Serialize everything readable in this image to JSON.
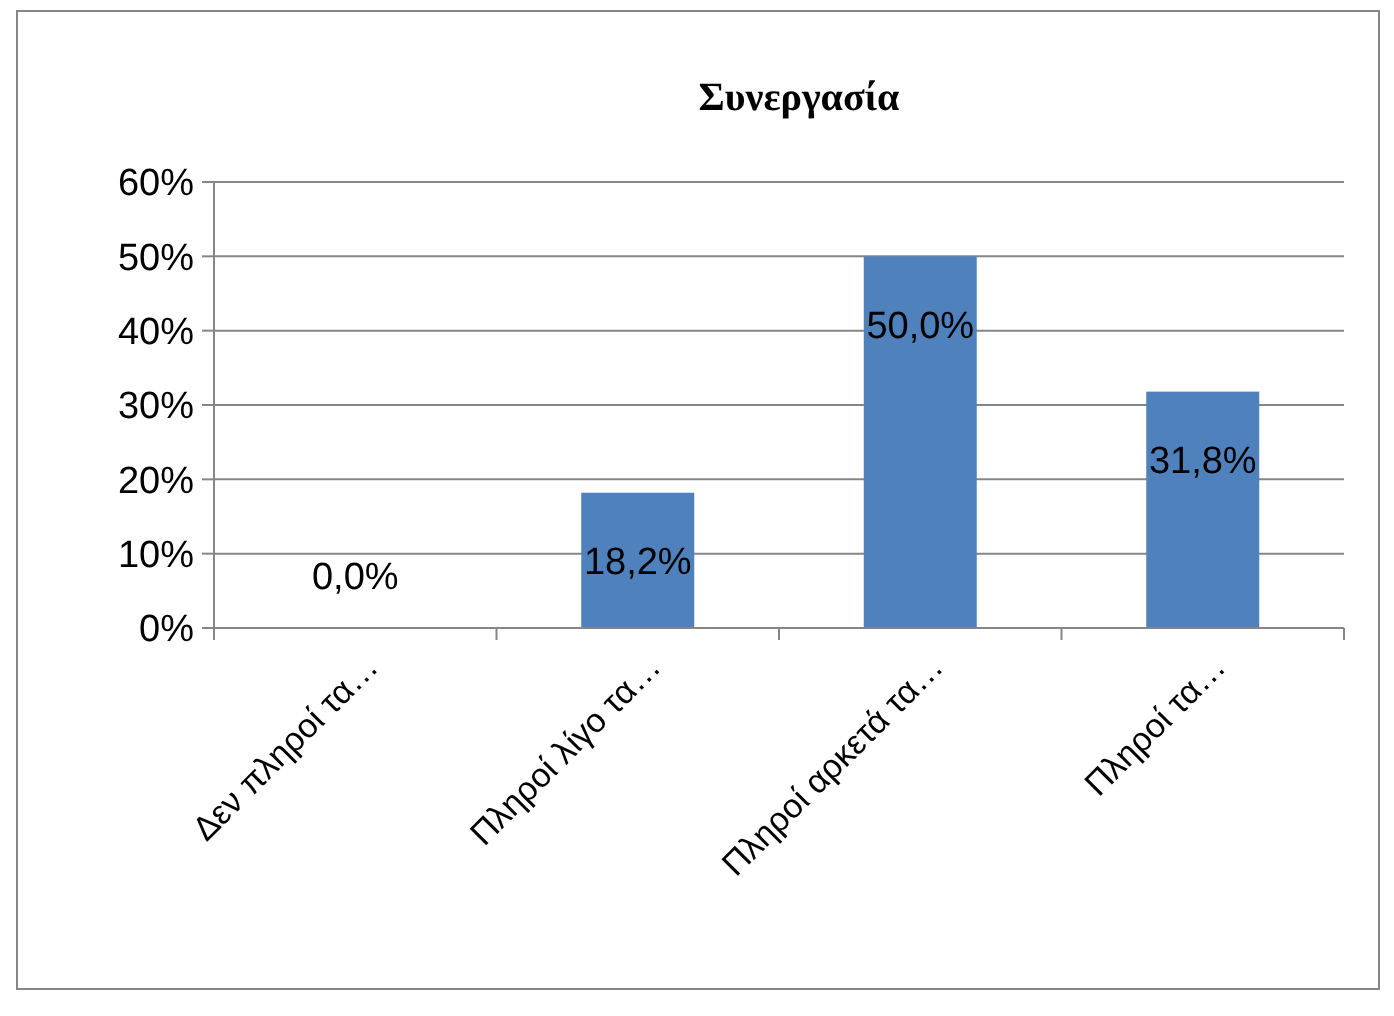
{
  "chart_data": {
    "type": "bar",
    "title": "Συνεργασία",
    "categories": [
      "Δεν πληροί τα…",
      "Πληροί λίγο τα…",
      "Πληροί αρκετά τα…",
      "Πληροί τα…"
    ],
    "values": [
      0,
      18.2,
      50,
      31.8
    ],
    "color": "#4f81bd",
    "value_labels": [
      "0,0%",
      "18,2%",
      "50,0%",
      "31,8%"
    ],
    "ylim": [
      0,
      60
    ],
    "yticks": [
      {
        "value": 0,
        "label": "0%"
      },
      {
        "value": 10,
        "label": "10%"
      },
      {
        "value": 20,
        "label": "20%"
      },
      {
        "value": 30,
        "label": "30%"
      },
      {
        "value": 40,
        "label": "40%"
      },
      {
        "value": 50,
        "label": "50%"
      },
      {
        "value": 60,
        "label": "60%"
      }
    ],
    "grid": "y"
  }
}
